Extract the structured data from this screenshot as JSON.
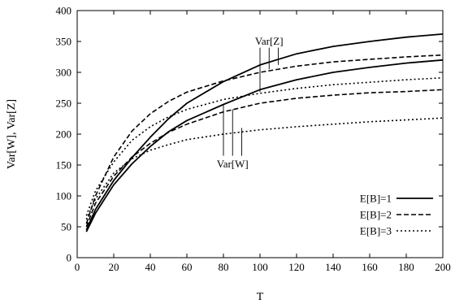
{
  "chart_data": {
    "type": "line",
    "title": "",
    "xlabel": "T",
    "ylabel": "Var[W], Var[Z]",
    "xlim": [
      0,
      200
    ],
    "ylim": [
      0,
      400
    ],
    "xticks": [
      0,
      20,
      40,
      60,
      80,
      100,
      120,
      140,
      160,
      180,
      200
    ],
    "yticks": [
      0,
      50,
      100,
      150,
      200,
      250,
      300,
      350,
      400
    ],
    "grid": false,
    "legend_position": "bottom-right",
    "legend": [
      {
        "label": "E[B]=1",
        "style": "solid"
      },
      {
        "label": "E[B]=2",
        "style": "dashed"
      },
      {
        "label": "E[B]=3",
        "style": "dotted"
      }
    ],
    "annotations": {
      "var_z_label": "Var[Z]",
      "var_w_label": "Var[W]",
      "var_z_pointers": [
        {
          "x": 100,
          "y_to": 268
        },
        {
          "x": 105,
          "y_to": 305
        },
        {
          "x": 110,
          "y_to": 312
        }
      ],
      "var_w_pointers": [
        {
          "x": 80,
          "y_to": 248
        },
        {
          "x": 85,
          "y_to": 240
        },
        {
          "x": 90,
          "y_to": 210
        }
      ]
    },
    "series": [
      {
        "quantity": "Var[Z]",
        "E[B]": 1,
        "style": "solid",
        "x": [
          5,
          10,
          20,
          30,
          40,
          50,
          60,
          80,
          100,
          120,
          140,
          160,
          180,
          200
        ],
        "values": [
          45,
          78,
          125,
          162,
          195,
          225,
          250,
          285,
          312,
          330,
          342,
          350,
          357,
          362
        ]
      },
      {
        "quantity": "Var[W]",
        "E[B]": 1,
        "style": "solid",
        "x": [
          5,
          10,
          20,
          30,
          40,
          50,
          60,
          80,
          100,
          120,
          140,
          160,
          180,
          200
        ],
        "values": [
          42,
          72,
          118,
          152,
          180,
          204,
          222,
          248,
          272,
          288,
          300,
          308,
          315,
          320
        ]
      },
      {
        "quantity": "Var[Z]",
        "E[B]": 2,
        "style": "dashed",
        "x": [
          5,
          10,
          20,
          30,
          40,
          50,
          60,
          80,
          100,
          120,
          140,
          160,
          180,
          200
        ],
        "values": [
          55,
          100,
          163,
          205,
          233,
          253,
          268,
          286,
          300,
          310,
          317,
          321,
          325,
          328
        ]
      },
      {
        "quantity": "Var[W]",
        "E[B]": 2,
        "style": "dashed",
        "x": [
          5,
          10,
          20,
          30,
          40,
          50,
          60,
          80,
          100,
          120,
          140,
          160,
          180,
          200
        ],
        "values": [
          50,
          88,
          132,
          163,
          185,
          203,
          216,
          236,
          250,
          258,
          263,
          267,
          269,
          272
        ]
      },
      {
        "quantity": "Var[Z]",
        "E[B]": 3,
        "style": "dotted",
        "x": [
          5,
          10,
          20,
          30,
          40,
          50,
          60,
          80,
          100,
          120,
          140,
          160,
          180,
          200
        ],
        "values": [
          68,
          108,
          155,
          190,
          212,
          228,
          240,
          256,
          266,
          274,
          280,
          284,
          288,
          291
        ]
      },
      {
        "quantity": "Var[W]",
        "E[B]": 3,
        "style": "dotted",
        "x": [
          5,
          10,
          20,
          30,
          40,
          50,
          60,
          80,
          100,
          120,
          140,
          160,
          180,
          200
        ],
        "values": [
          62,
          95,
          137,
          160,
          174,
          183,
          191,
          200,
          207,
          212,
          216,
          220,
          223,
          226
        ]
      }
    ]
  }
}
